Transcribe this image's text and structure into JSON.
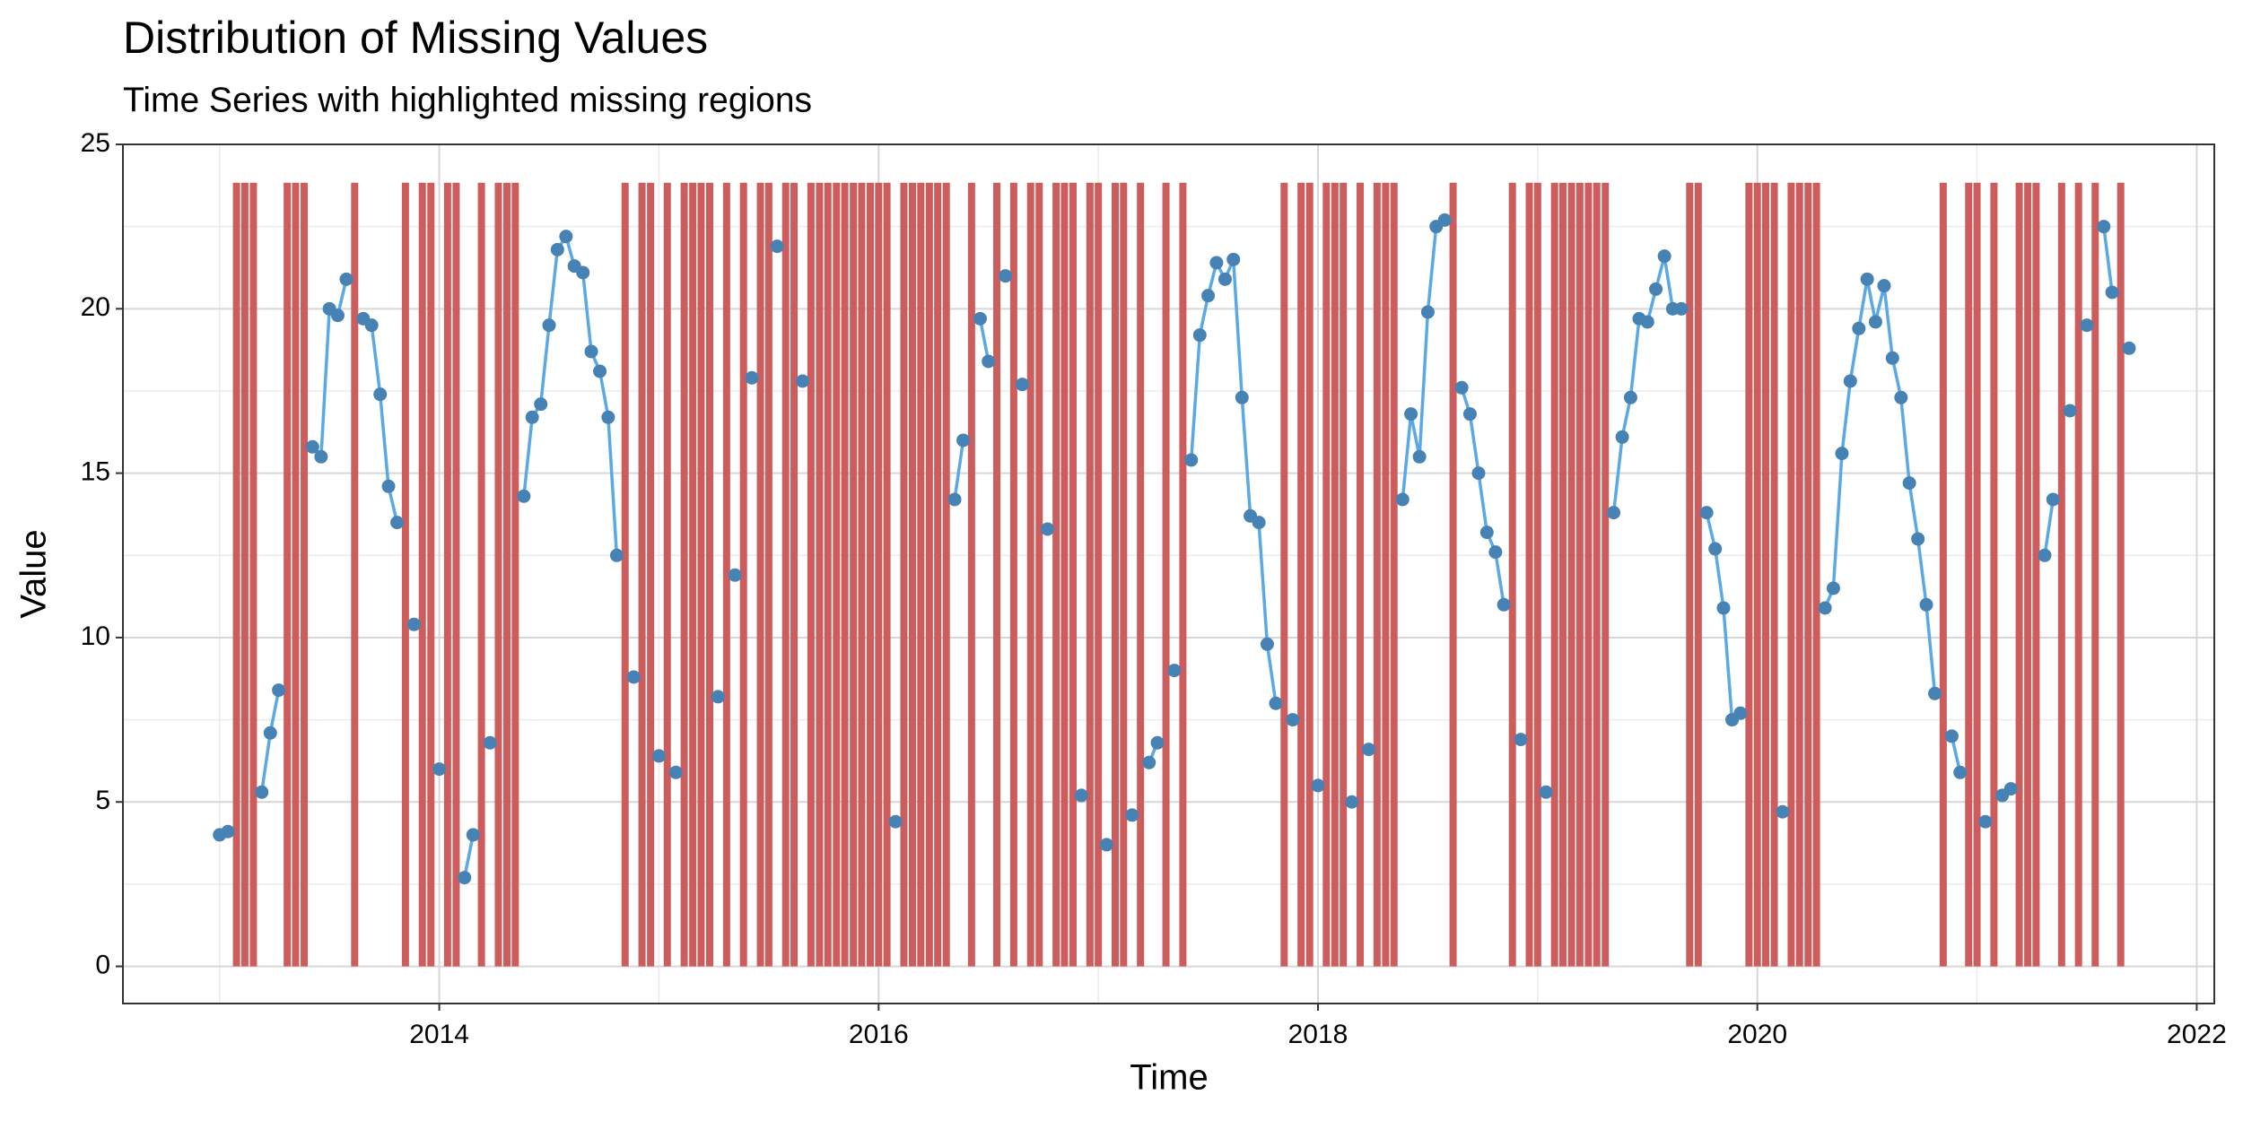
{
  "chart_data": {
    "type": "line",
    "title": "Distribution of Missing Values",
    "subtitle": "Time Series with highlighted missing regions",
    "x_label": "Time",
    "y_label": "Value",
    "xlim": [
      2012.56,
      2022.08
    ],
    "xticks": [
      2014,
      2016,
      2018,
      2020,
      2022
    ],
    "ylim": [
      -1.13,
      25
    ],
    "yticks": [
      0,
      5,
      10,
      15,
      20,
      25
    ],
    "grid": true,
    "line_color": "#5aa9e6",
    "point_color": "#4682b4",
    "missing_color": "#cd5c5c",
    "x": [
      2013,
      2013.038,
      2013.077,
      2013.115,
      2013.154,
      2013.192,
      2013.231,
      2013.269,
      2013.308,
      2013.346,
      2013.385,
      2013.423,
      2013.462,
      2013.5,
      2013.538,
      2013.577,
      2013.615,
      2013.654,
      2013.692,
      2013.731,
      2013.769,
      2013.808,
      2013.846,
      2013.885,
      2013.923,
      2013.962,
      2014,
      2014.038,
      2014.077,
      2014.115,
      2014.154,
      2014.192,
      2014.231,
      2014.269,
      2014.308,
      2014.346,
      2014.385,
      2014.423,
      2014.462,
      2014.5,
      2014.538,
      2014.577,
      2014.615,
      2014.654,
      2014.692,
      2014.731,
      2014.769,
      2014.808,
      2014.846,
      2014.885,
      2014.923,
      2014.962,
      2015,
      2015.038,
      2015.077,
      2015.115,
      2015.154,
      2015.192,
      2015.231,
      2015.269,
      2015.308,
      2015.346,
      2015.385,
      2015.423,
      2015.462,
      2015.5,
      2015.538,
      2015.577,
      2015.615,
      2015.654,
      2015.692,
      2015.731,
      2015.769,
      2015.808,
      2015.846,
      2015.885,
      2015.923,
      2015.962,
      2016,
      2016.038,
      2016.077,
      2016.115,
      2016.154,
      2016.192,
      2016.231,
      2016.269,
      2016.308,
      2016.346,
      2016.385,
      2016.423,
      2016.462,
      2016.5,
      2016.538,
      2016.577,
      2016.615,
      2016.654,
      2016.692,
      2016.731,
      2016.769,
      2016.808,
      2016.846,
      2016.885,
      2016.923,
      2016.962,
      2017,
      2017.038,
      2017.077,
      2017.115,
      2017.154,
      2017.192,
      2017.231,
      2017.269,
      2017.308,
      2017.346,
      2017.385,
      2017.423,
      2017.462,
      2017.5,
      2017.538,
      2017.577,
      2017.615,
      2017.654,
      2017.692,
      2017.731,
      2017.769,
      2017.808,
      2017.846,
      2017.885,
      2017.923,
      2017.962,
      2018,
      2018.038,
      2018.077,
      2018.115,
      2018.154,
      2018.192,
      2018.231,
      2018.269,
      2018.308,
      2018.346,
      2018.385,
      2018.423,
      2018.462,
      2018.5,
      2018.538,
      2018.577,
      2018.615,
      2018.654,
      2018.692,
      2018.731,
      2018.769,
      2018.808,
      2018.846,
      2018.885,
      2018.923,
      2018.962,
      2019,
      2019.038,
      2019.077,
      2019.115,
      2019.154,
      2019.192,
      2019.231,
      2019.269,
      2019.308,
      2019.346,
      2019.385,
      2019.423,
      2019.462,
      2019.5,
      2019.538,
      2019.577,
      2019.615,
      2019.654,
      2019.692,
      2019.731,
      2019.769,
      2019.808,
      2019.846,
      2019.885,
      2019.923,
      2019.962,
      2020,
      2020.038,
      2020.077,
      2020.115,
      2020.154,
      2020.192,
      2020.231,
      2020.269,
      2020.308,
      2020.346,
      2020.385,
      2020.423,
      2020.462,
      2020.5,
      2020.538,
      2020.577,
      2020.615,
      2020.654,
      2020.692,
      2020.731,
      2020.769,
      2020.808,
      2020.846,
      2020.885,
      2020.923,
      2020.962,
      2021,
      2021.038,
      2021.077,
      2021.115,
      2021.154,
      2021.192,
      2021.231,
      2021.269,
      2021.308,
      2021.346,
      2021.385,
      2021.423,
      2021.462,
      2021.5,
      2021.538,
      2021.577,
      2021.615,
      2021.654,
      2021.692
    ],
    "values": [
      4,
      4.1,
      null,
      null,
      null,
      5.3,
      7.1,
      8.4,
      null,
      null,
      null,
      15.8,
      15.5,
      20.0,
      19.8,
      20.9,
      null,
      19.7,
      19.5,
      17.4,
      14.6,
      13.5,
      null,
      10.4,
      null,
      null,
      6.0,
      null,
      null,
      2.7,
      4.0,
      null,
      6.8,
      null,
      null,
      null,
      14.3,
      16.7,
      17.1,
      19.5,
      21.8,
      22.2,
      21.3,
      21.1,
      18.7,
      18.1,
      16.7,
      12.5,
      null,
      8.8,
      null,
      null,
      6.4,
      null,
      5.9,
      null,
      null,
      null,
      null,
      8.2,
      null,
      11.9,
      null,
      17.9,
      null,
      null,
      21.9,
      null,
      null,
      17.8,
      null,
      null,
      null,
      null,
      null,
      null,
      null,
      null,
      null,
      null,
      4.4,
      null,
      null,
      null,
      null,
      null,
      null,
      14.2,
      16.0,
      null,
      19.7,
      18.4,
      null,
      21.0,
      null,
      17.7,
      null,
      null,
      13.3,
      null,
      null,
      null,
      5.2,
      null,
      null,
      3.7,
      null,
      null,
      4.6,
      null,
      6.2,
      6.8,
      null,
      9.0,
      null,
      15.4,
      19.2,
      20.4,
      21.4,
      20.9,
      21.5,
      17.3,
      13.7,
      13.5,
      9.8,
      8.0,
      null,
      7.5,
      null,
      null,
      5.5,
      null,
      null,
      null,
      5.0,
      null,
      6.6,
      null,
      null,
      null,
      14.2,
      16.8,
      15.5,
      19.9,
      22.5,
      22.7,
      null,
      17.6,
      16.8,
      15.0,
      13.2,
      12.6,
      11.0,
      null,
      6.9,
      null,
      null,
      5.3,
      null,
      null,
      null,
      null,
      null,
      null,
      null,
      13.8,
      16.1,
      17.3,
      19.7,
      19.6,
      20.6,
      21.6,
      20.0,
      20.0,
      null,
      null,
      13.8,
      12.7,
      10.9,
      7.5,
      7.7,
      null,
      null,
      null,
      null,
      4.7,
      null,
      null,
      null,
      null,
      10.9,
      11.5,
      15.6,
      17.8,
      19.4,
      20.9,
      19.6,
      20.7,
      18.5,
      17.3,
      14.7,
      13.0,
      11.0,
      8.3,
      null,
      7.0,
      5.9,
      null,
      null,
      4.4,
      null,
      5.2,
      5.4,
      null,
      null,
      null,
      12.5,
      14.2,
      null,
      16.9,
      null,
      19.5,
      null,
      22.5,
      20.5,
      null,
      18.8
    ]
  }
}
